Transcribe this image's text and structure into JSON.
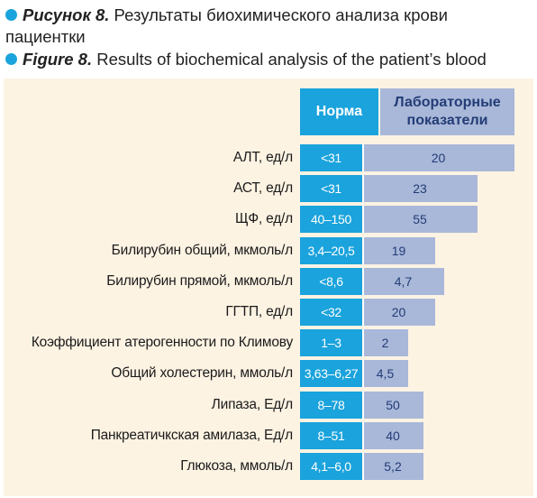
{
  "caption": {
    "ru_label": "Рисунок 8.",
    "ru_text_1": " Результаты биохимического анализа крови",
    "ru_text_2": "пациентки",
    "en_label": "Figure 8.",
    "en_text": " Results of biochemical analysis of the patient’s blood"
  },
  "table": {
    "header_norm": "Норма",
    "header_lab": "Лабораторные показатели",
    "rows": [
      {
        "label": "АЛТ, ед/л",
        "norm": "<31",
        "value": "20",
        "bar_fraction": 1.0
      },
      {
        "label": "АСТ, ед/л",
        "norm": "<31",
        "value": "23",
        "bar_fraction": 0.755
      },
      {
        "label": "ЩФ, ед/л",
        "norm": "40–150",
        "value": "55",
        "bar_fraction": 0.755
      },
      {
        "label": "Билирубин общий, мкмоль/л",
        "norm": "3,4–20,5",
        "value": "19",
        "bar_fraction": 0.48
      },
      {
        "label": "Билирубин прямой, мкмоль/л",
        "norm": "<8,6",
        "value": "4,7",
        "bar_fraction": 0.54
      },
      {
        "label": "ГГТП, ед/л",
        "norm": "<32",
        "value": "20",
        "bar_fraction": 0.48
      },
      {
        "label": "Коэффициент атерогенности по Климову",
        "norm": "1–3",
        "value": "2",
        "bar_fraction": 0.3
      },
      {
        "label": "Общий холестерин, ммоль/л",
        "norm": "3,63–6,27",
        "value": "4,5",
        "bar_fraction": 0.3
      },
      {
        "label": "Липаза, Ед/л",
        "norm": "8–78",
        "value": "50",
        "bar_fraction": 0.4
      },
      {
        "label": "Панкреатичкская амилаза, Ед/л",
        "norm": "8–51",
        "value": "40",
        "bar_fraction": 0.4
      },
      {
        "label": "Глюкоза, ммоль/л",
        "norm": "4,1–6,0",
        "value": "5,2",
        "bar_fraction": 0.4
      }
    ]
  },
  "colors": {
    "accent": "#1aa3dc",
    "bar": "#a9b8d9",
    "bar_text": "#233c76",
    "panel_bg": "#fdf3e3"
  }
}
